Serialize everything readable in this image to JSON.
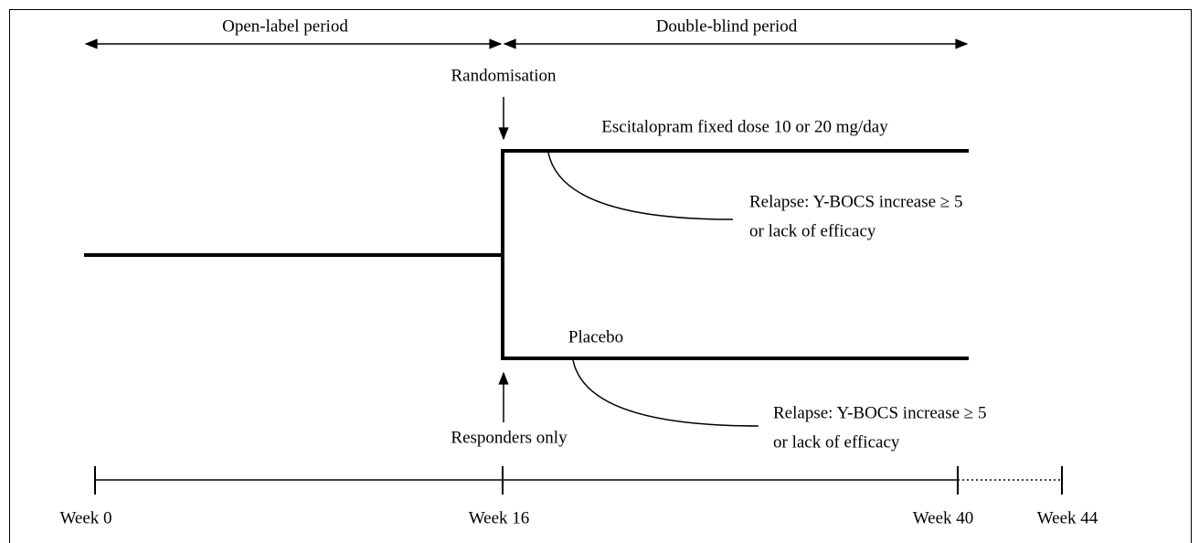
{
  "periods": {
    "open_label": "Open-label period",
    "double_blind": "Double-blind period"
  },
  "randomisation": "Randomisation",
  "responders": "Responders only",
  "arms": [
    {
      "label": "Escitalopram fixed dose 10 or 20 mg/day",
      "relapse": [
        "Relapse: Y-BOCS increase ≥ 5",
        "or lack of efficacy"
      ]
    },
    {
      "label": "Placebo",
      "relapse": [
        "Relapse: Y-BOCS increase ≥ 5",
        "or lack of efficacy"
      ]
    }
  ],
  "timeline": [
    "Week 0",
    "Week 16",
    "Week 40",
    "Week 44"
  ]
}
